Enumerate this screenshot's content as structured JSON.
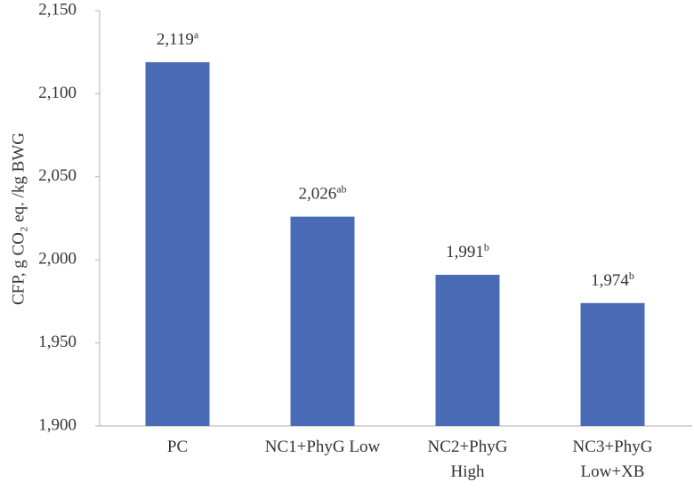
{
  "chart_data": {
    "type": "bar",
    "y_label": "CFP, g CO₂ eq. /kg BWG",
    "categories": [
      "PC",
      "NC1+PhyG Low",
      "NC2+PhyG\nHigh",
      "NC3+PhyG\nLow+XB"
    ],
    "values": [
      2119,
      2026,
      1991,
      1974
    ],
    "value_labels": [
      "2,119",
      "2,026",
      "1,991",
      "1,974"
    ],
    "significance_letters": [
      "a",
      "ab",
      "b",
      "b"
    ],
    "color": "#4a6cb6",
    "ylim": [
      1900,
      2150
    ],
    "yticks": [
      {
        "value": 1900,
        "label": "1,900"
      },
      {
        "value": 1950,
        "label": "1,950"
      },
      {
        "value": 2000,
        "label": "2,000"
      },
      {
        "value": 2050,
        "label": "2,050"
      },
      {
        "value": 2100,
        "label": "2,100"
      },
      {
        "value": 2150,
        "label": "2,150"
      }
    ],
    "grid": false
  }
}
